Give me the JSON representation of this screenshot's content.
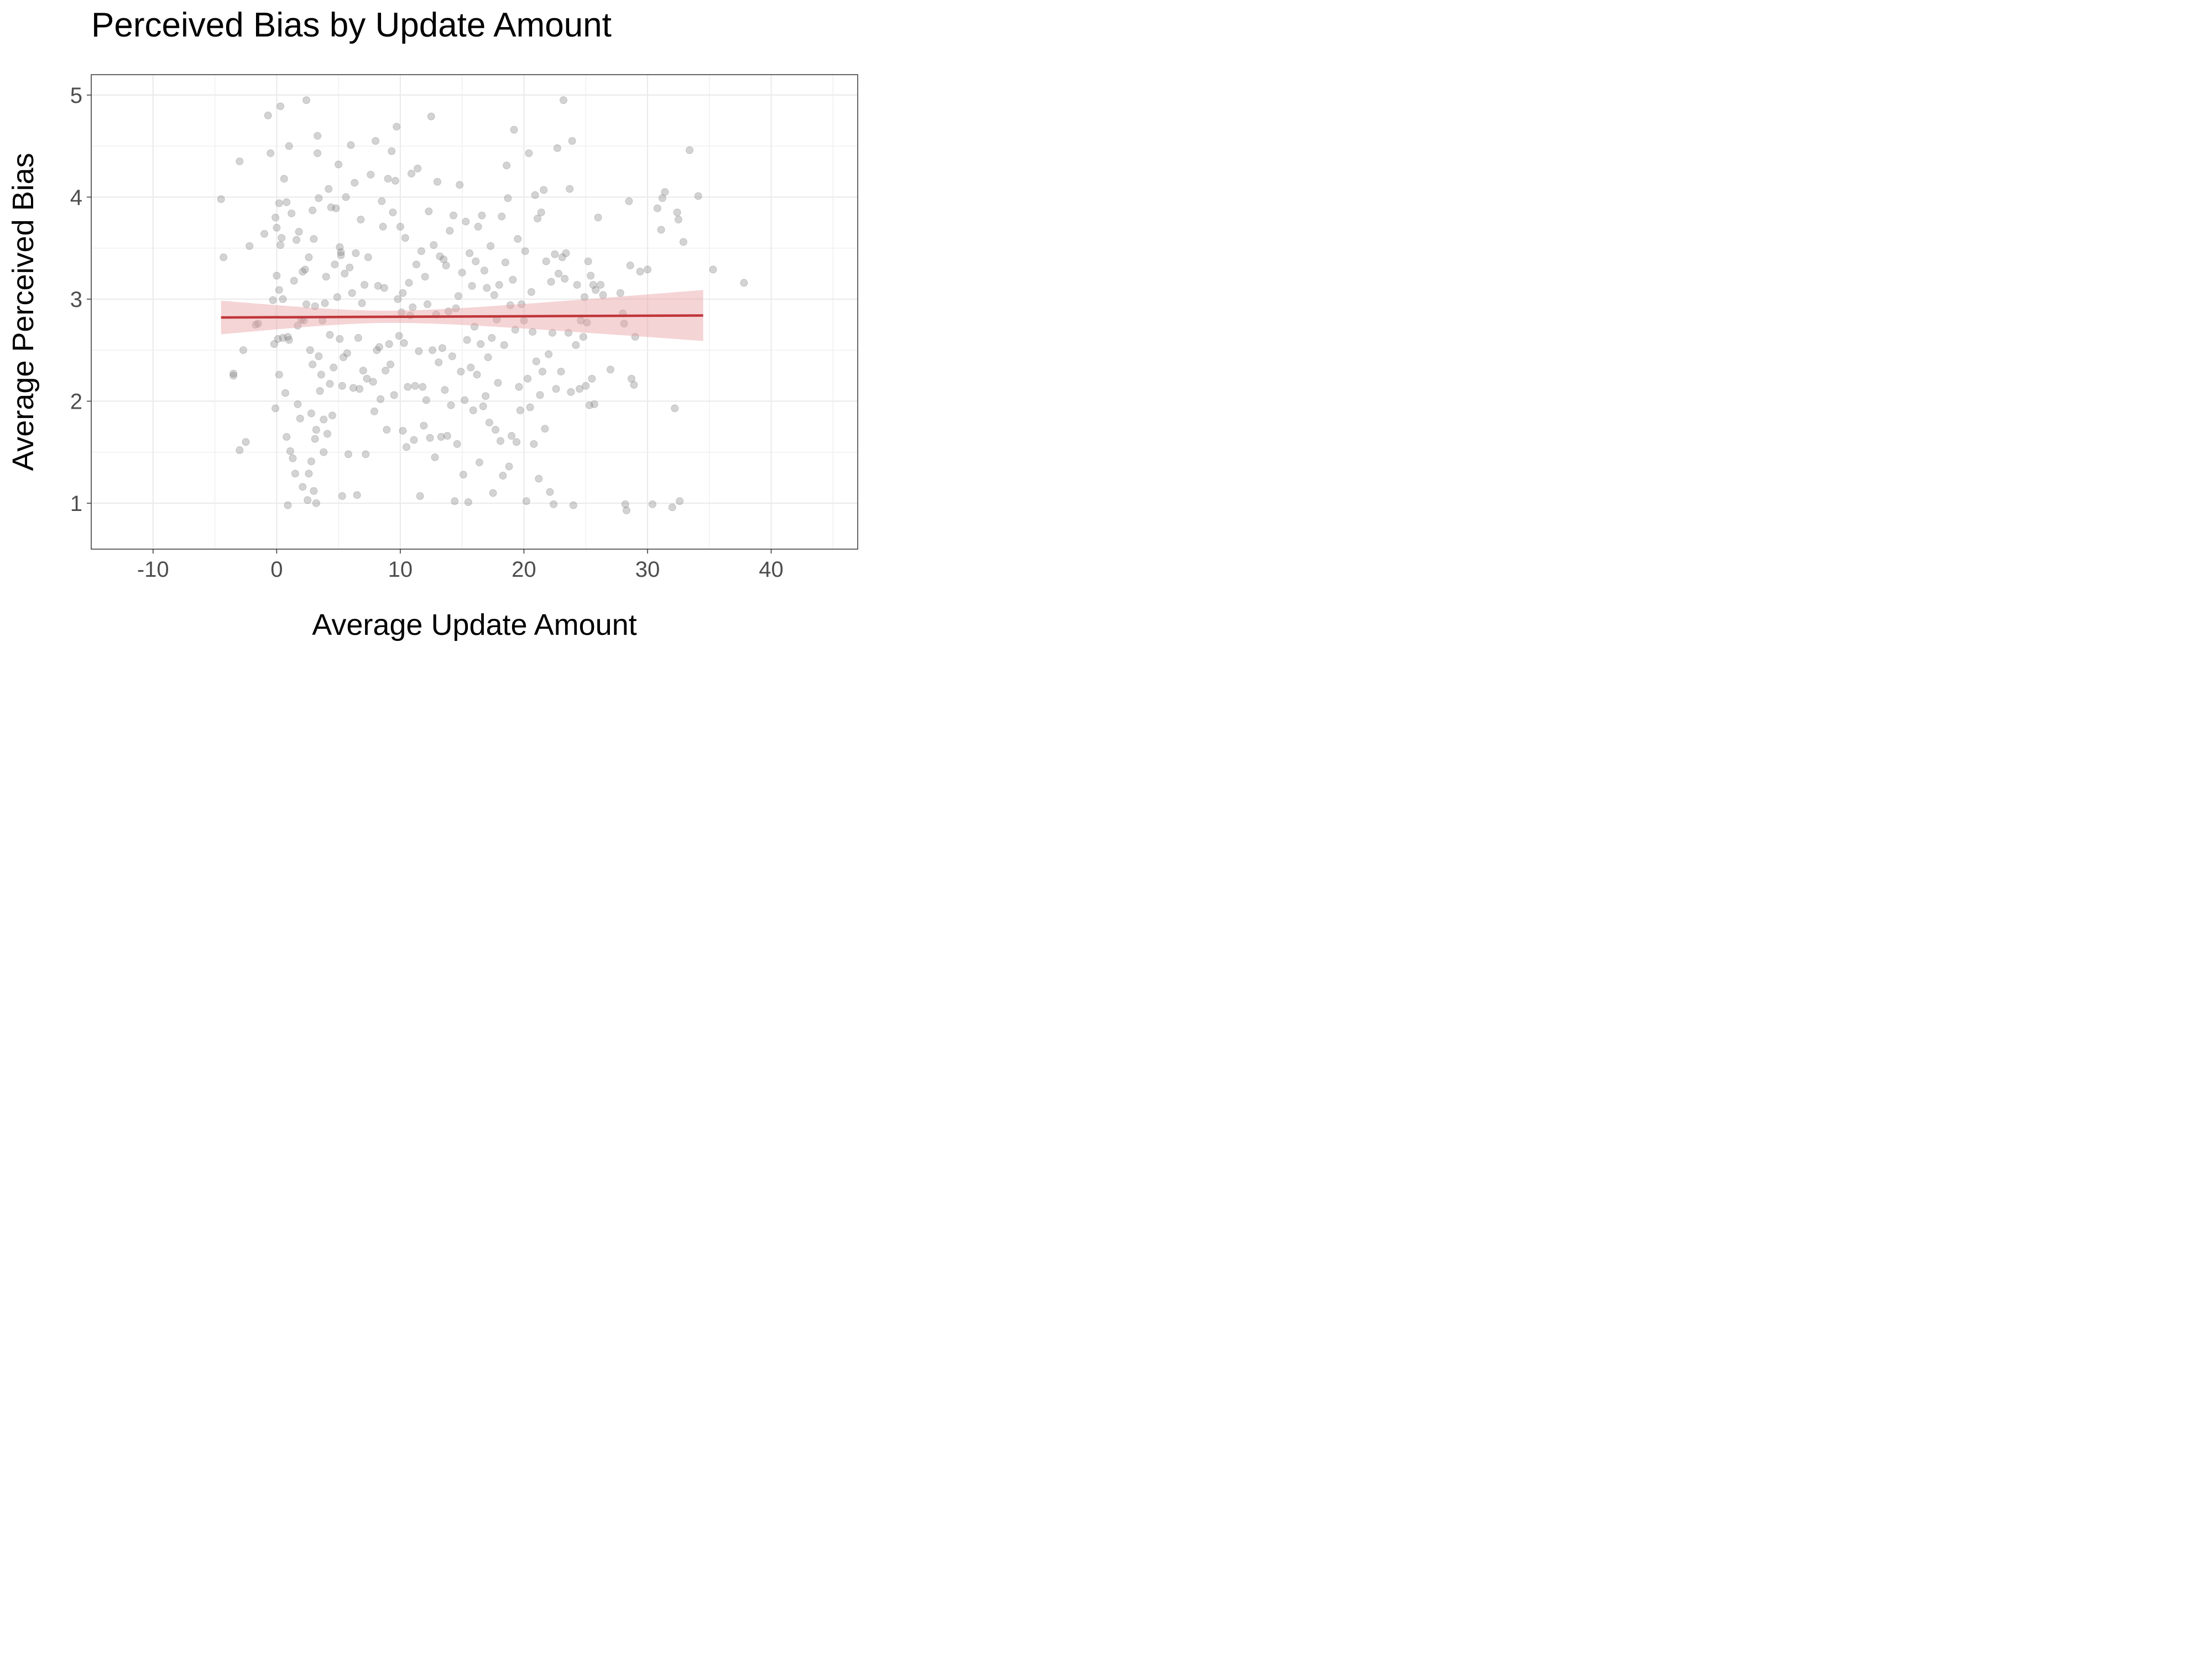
{
  "chart_data": {
    "type": "scatter",
    "title": "Perceived Bias by Update Amount",
    "xlabel": "Average Update Amount",
    "ylabel": "Average Perceived Bias",
    "xlim": [
      -15,
      47
    ],
    "ylim": [
      0.55,
      5.2
    ],
    "x_ticks": [
      -10,
      0,
      10,
      20,
      30,
      40
    ],
    "x_tick_labels": [
      "-10",
      "0",
      "10",
      "20",
      "30",
      "40"
    ],
    "y_ticks": [
      1,
      2,
      3,
      4,
      5
    ],
    "y_tick_labels": [
      "1",
      "2",
      "3",
      "4",
      "5"
    ],
    "grid": true,
    "point_color": "#808080",
    "point_opacity": 0.35,
    "fit_line_color": "#c0363a",
    "band_color": "#e8a0a2",
    "regression": {
      "x_range": [
        -4.5,
        34.5
      ],
      "y_at_start": 2.82,
      "y_at_end": 2.84,
      "ci_at_start": [
        2.65,
        2.98
      ],
      "ci_at_min": [
        2.76,
        2.88
      ],
      "ci_at_end": [
        2.59,
        3.09
      ],
      "x_at_min_width": 9
    },
    "points": [
      [
        -4.5,
        3.98
      ],
      [
        -4.3,
        3.41
      ],
      [
        -3.5,
        2.27
      ],
      [
        -3.5,
        2.25
      ],
      [
        -3.0,
        4.35
      ],
      [
        -3.0,
        1.52
      ],
      [
        -2.7,
        2.5
      ],
      [
        -2.5,
        1.6
      ],
      [
        -2.2,
        3.52
      ],
      [
        -1.7,
        2.75
      ],
      [
        -1.5,
        2.76
      ],
      [
        -1.0,
        3.64
      ],
      [
        -0.7,
        4.8
      ],
      [
        -0.5,
        4.43
      ],
      [
        -0.3,
        2.99
      ],
      [
        -0.2,
        2.56
      ],
      [
        -0.1,
        1.93
      ],
      [
        -0.1,
        3.8
      ],
      [
        0.0,
        3.7
      ],
      [
        0.0,
        3.23
      ],
      [
        0.1,
        2.61
      ],
      [
        0.2,
        3.09
      ],
      [
        0.2,
        2.26
      ],
      [
        0.2,
        3.94
      ],
      [
        0.3,
        3.53
      ],
      [
        0.3,
        4.89
      ],
      [
        0.4,
        3.6
      ],
      [
        0.5,
        2.62
      ],
      [
        0.5,
        3.0
      ],
      [
        0.6,
        4.18
      ],
      [
        0.7,
        2.08
      ],
      [
        0.8,
        1.65
      ],
      [
        0.8,
        3.95
      ],
      [
        0.9,
        2.63
      ],
      [
        0.9,
        0.98
      ],
      [
        1.0,
        2.6
      ],
      [
        1.0,
        4.5
      ],
      [
        1.1,
        1.51
      ],
      [
        1.2,
        3.84
      ],
      [
        1.3,
        1.44
      ],
      [
        1.4,
        3.18
      ],
      [
        1.5,
        1.29
      ],
      [
        1.6,
        3.58
      ],
      [
        1.7,
        1.97
      ],
      [
        1.7,
        2.74
      ],
      [
        1.8,
        3.66
      ],
      [
        1.9,
        1.83
      ],
      [
        2.0,
        2.8
      ],
      [
        2.1,
        3.27
      ],
      [
        2.1,
        1.16
      ],
      [
        2.2,
        2.79
      ],
      [
        2.3,
        3.29
      ],
      [
        2.4,
        4.95
      ],
      [
        2.4,
        2.95
      ],
      [
        2.5,
        1.03
      ],
      [
        2.6,
        3.41
      ],
      [
        2.6,
        1.29
      ],
      [
        2.7,
        2.5
      ],
      [
        2.8,
        1.88
      ],
      [
        2.8,
        1.41
      ],
      [
        2.9,
        3.87
      ],
      [
        2.9,
        2.36
      ],
      [
        3.0,
        3.59
      ],
      [
        3.0,
        1.12
      ],
      [
        3.1,
        2.93
      ],
      [
        3.1,
        1.63
      ],
      [
        3.2,
        1.72
      ],
      [
        3.2,
        1.0
      ],
      [
        3.3,
        4.43
      ],
      [
        3.3,
        4.6
      ],
      [
        3.4,
        2.44
      ],
      [
        3.4,
        3.99
      ],
      [
        3.5,
        2.1
      ],
      [
        3.6,
        2.26
      ],
      [
        3.7,
        2.79
      ],
      [
        3.8,
        1.82
      ],
      [
        3.8,
        1.5
      ],
      [
        3.9,
        2.96
      ],
      [
        4.0,
        3.22
      ],
      [
        4.1,
        1.68
      ],
      [
        4.2,
        4.08
      ],
      [
        4.3,
        2.17
      ],
      [
        4.3,
        2.65
      ],
      [
        4.4,
        3.9
      ],
      [
        4.5,
        1.86
      ],
      [
        4.6,
        2.33
      ],
      [
        4.7,
        3.34
      ],
      [
        4.8,
        3.89
      ],
      [
        4.9,
        3.02
      ],
      [
        5.0,
        4.32
      ],
      [
        5.1,
        3.51
      ],
      [
        5.1,
        2.61
      ],
      [
        5.2,
        3.46
      ],
      [
        5.2,
        3.43
      ],
      [
        5.3,
        2.15
      ],
      [
        5.3,
        1.07
      ],
      [
        5.4,
        2.43
      ],
      [
        5.5,
        3.25
      ],
      [
        5.6,
        4.0
      ],
      [
        5.7,
        2.47
      ],
      [
        5.8,
        1.48
      ],
      [
        5.9,
        3.31
      ],
      [
        6.0,
        4.51
      ],
      [
        6.1,
        3.06
      ],
      [
        6.2,
        2.13
      ],
      [
        6.3,
        4.14
      ],
      [
        6.4,
        3.45
      ],
      [
        6.5,
        1.08
      ],
      [
        6.6,
        2.62
      ],
      [
        6.7,
        2.12
      ],
      [
        6.8,
        3.78
      ],
      [
        6.9,
        2.96
      ],
      [
        7.0,
        2.3
      ],
      [
        7.1,
        3.14
      ],
      [
        7.2,
        1.48
      ],
      [
        7.3,
        2.22
      ],
      [
        7.4,
        3.41
      ],
      [
        7.6,
        4.22
      ],
      [
        7.8,
        2.19
      ],
      [
        7.9,
        1.9
      ],
      [
        8.0,
        4.55
      ],
      [
        8.1,
        2.5
      ],
      [
        8.2,
        3.13
      ],
      [
        8.3,
        2.53
      ],
      [
        8.4,
        2.02
      ],
      [
        8.5,
        3.96
      ],
      [
        8.6,
        3.71
      ],
      [
        8.7,
        3.11
      ],
      [
        8.8,
        2.3
      ],
      [
        8.9,
        1.72
      ],
      [
        9.0,
        4.18
      ],
      [
        9.1,
        2.56
      ],
      [
        9.2,
        2.36
      ],
      [
        9.3,
        4.45
      ],
      [
        9.4,
        3.85
      ],
      [
        9.5,
        2.06
      ],
      [
        9.6,
        4.16
      ],
      [
        9.7,
        4.69
      ],
      [
        9.8,
        3.0
      ],
      [
        9.9,
        2.64
      ],
      [
        10.0,
        3.71
      ],
      [
        10.1,
        2.87
      ],
      [
        10.2,
        3.06
      ],
      [
        10.2,
        1.71
      ],
      [
        10.3,
        2.57
      ],
      [
        10.4,
        3.6
      ],
      [
        10.5,
        1.55
      ],
      [
        10.6,
        2.14
      ],
      [
        10.7,
        3.16
      ],
      [
        10.8,
        2.84
      ],
      [
        10.9,
        4.23
      ],
      [
        11.0,
        2.92
      ],
      [
        11.1,
        1.62
      ],
      [
        11.2,
        2.15
      ],
      [
        11.3,
        3.34
      ],
      [
        11.4,
        4.28
      ],
      [
        11.5,
        2.49
      ],
      [
        11.6,
        1.07
      ],
      [
        11.7,
        3.47
      ],
      [
        11.8,
        2.14
      ],
      [
        11.9,
        1.76
      ],
      [
        12.0,
        3.22
      ],
      [
        12.1,
        2.01
      ],
      [
        12.2,
        2.95
      ],
      [
        12.3,
        3.86
      ],
      [
        12.4,
        1.64
      ],
      [
        12.5,
        4.79
      ],
      [
        12.6,
        2.5
      ],
      [
        12.7,
        3.53
      ],
      [
        12.8,
        1.45
      ],
      [
        12.9,
        2.85
      ],
      [
        13.0,
        4.15
      ],
      [
        13.1,
        2.38
      ],
      [
        13.2,
        3.42
      ],
      [
        13.3,
        1.65
      ],
      [
        13.4,
        2.52
      ],
      [
        13.5,
        3.39
      ],
      [
        13.6,
        2.11
      ],
      [
        13.7,
        3.33
      ],
      [
        13.8,
        1.66
      ],
      [
        13.9,
        2.88
      ],
      [
        14.0,
        3.67
      ],
      [
        14.1,
        1.96
      ],
      [
        14.2,
        2.44
      ],
      [
        14.3,
        3.82
      ],
      [
        14.4,
        1.02
      ],
      [
        14.5,
        2.91
      ],
      [
        14.6,
        1.58
      ],
      [
        14.7,
        3.03
      ],
      [
        14.8,
        4.12
      ],
      [
        14.9,
        2.29
      ],
      [
        15.0,
        3.26
      ],
      [
        15.1,
        1.28
      ],
      [
        15.2,
        2.01
      ],
      [
        15.3,
        3.76
      ],
      [
        15.4,
        2.6
      ],
      [
        15.5,
        1.01
      ],
      [
        15.6,
        3.45
      ],
      [
        15.7,
        2.33
      ],
      [
        15.8,
        3.13
      ],
      [
        15.9,
        1.91
      ],
      [
        16.0,
        2.73
      ],
      [
        16.1,
        3.37
      ],
      [
        16.2,
        2.26
      ],
      [
        16.3,
        3.71
      ],
      [
        16.4,
        1.4
      ],
      [
        16.5,
        2.56
      ],
      [
        16.6,
        3.82
      ],
      [
        16.7,
        1.95
      ],
      [
        16.8,
        3.28
      ],
      [
        16.9,
        2.05
      ],
      [
        17.0,
        3.11
      ],
      [
        17.1,
        2.43
      ],
      [
        17.2,
        1.79
      ],
      [
        17.3,
        3.52
      ],
      [
        17.4,
        2.62
      ],
      [
        17.5,
        1.1
      ],
      [
        17.6,
        3.04
      ],
      [
        17.7,
        1.72
      ],
      [
        17.8,
        2.8
      ],
      [
        17.9,
        2.18
      ],
      [
        18.0,
        3.14
      ],
      [
        18.1,
        1.61
      ],
      [
        18.2,
        3.81
      ],
      [
        18.3,
        1.27
      ],
      [
        18.4,
        2.55
      ],
      [
        18.5,
        3.36
      ],
      [
        18.6,
        4.31
      ],
      [
        18.7,
        3.99
      ],
      [
        18.8,
        1.36
      ],
      [
        18.9,
        2.94
      ],
      [
        19.0,
        1.66
      ],
      [
        19.1,
        3.19
      ],
      [
        19.2,
        4.66
      ],
      [
        19.3,
        2.7
      ],
      [
        19.4,
        1.6
      ],
      [
        19.5,
        3.59
      ],
      [
        19.6,
        2.14
      ],
      [
        19.7,
        1.91
      ],
      [
        19.8,
        2.95
      ],
      [
        20.0,
        2.79
      ],
      [
        20.1,
        3.47
      ],
      [
        20.2,
        1.02
      ],
      [
        20.3,
        2.22
      ],
      [
        20.4,
        4.43
      ],
      [
        20.5,
        1.94
      ],
      [
        20.6,
        3.07
      ],
      [
        20.7,
        2.68
      ],
      [
        20.8,
        1.58
      ],
      [
        20.9,
        4.02
      ],
      [
        21.0,
        2.39
      ],
      [
        21.1,
        3.79
      ],
      [
        21.2,
        1.24
      ],
      [
        21.3,
        2.06
      ],
      [
        21.4,
        3.85
      ],
      [
        21.5,
        2.29
      ],
      [
        21.6,
        4.07
      ],
      [
        21.7,
        1.73
      ],
      [
        21.8,
        3.37
      ],
      [
        22.0,
        2.46
      ],
      [
        22.1,
        1.11
      ],
      [
        22.2,
        3.17
      ],
      [
        22.3,
        2.67
      ],
      [
        22.4,
        0.99
      ],
      [
        22.5,
        3.44
      ],
      [
        22.6,
        2.12
      ],
      [
        22.7,
        4.48
      ],
      [
        22.8,
        3.25
      ],
      [
        23.0,
        2.29
      ],
      [
        23.1,
        3.41
      ],
      [
        23.2,
        4.95
      ],
      [
        23.3,
        3.2
      ],
      [
        23.4,
        3.45
      ],
      [
        23.6,
        2.67
      ],
      [
        23.7,
        4.08
      ],
      [
        23.8,
        2.09
      ],
      [
        23.9,
        4.55
      ],
      [
        24.0,
        0.98
      ],
      [
        24.2,
        2.55
      ],
      [
        24.3,
        3.14
      ],
      [
        24.5,
        2.12
      ],
      [
        24.6,
        2.79
      ],
      [
        24.8,
        2.63
      ],
      [
        24.9,
        3.02
      ],
      [
        25.0,
        2.15
      ],
      [
        25.1,
        2.77
      ],
      [
        25.2,
        3.37
      ],
      [
        25.3,
        1.96
      ],
      [
        25.4,
        3.23
      ],
      [
        25.5,
        2.22
      ],
      [
        25.6,
        3.14
      ],
      [
        25.7,
        1.97
      ],
      [
        25.8,
        3.09
      ],
      [
        26.0,
        3.8
      ],
      [
        26.2,
        3.14
      ],
      [
        26.4,
        3.04
      ],
      [
        27.0,
        2.31
      ],
      [
        27.8,
        3.06
      ],
      [
        28.0,
        2.86
      ],
      [
        28.1,
        2.76
      ],
      [
        28.2,
        0.99
      ],
      [
        28.3,
        0.93
      ],
      [
        28.5,
        3.96
      ],
      [
        28.6,
        3.33
      ],
      [
        28.7,
        2.22
      ],
      [
        28.9,
        2.16
      ],
      [
        29.0,
        2.63
      ],
      [
        29.4,
        3.27
      ],
      [
        30.0,
        3.29
      ],
      [
        30.4,
        0.99
      ],
      [
        30.8,
        3.89
      ],
      [
        31.1,
        3.68
      ],
      [
        31.2,
        3.99
      ],
      [
        31.4,
        4.05
      ],
      [
        32.0,
        0.96
      ],
      [
        32.2,
        1.93
      ],
      [
        32.4,
        3.85
      ],
      [
        32.5,
        3.78
      ],
      [
        32.6,
        1.02
      ],
      [
        32.9,
        3.56
      ],
      [
        33.4,
        4.46
      ],
      [
        34.1,
        4.01
      ],
      [
        35.3,
        3.29
      ],
      [
        37.8,
        3.16
      ]
    ]
  }
}
